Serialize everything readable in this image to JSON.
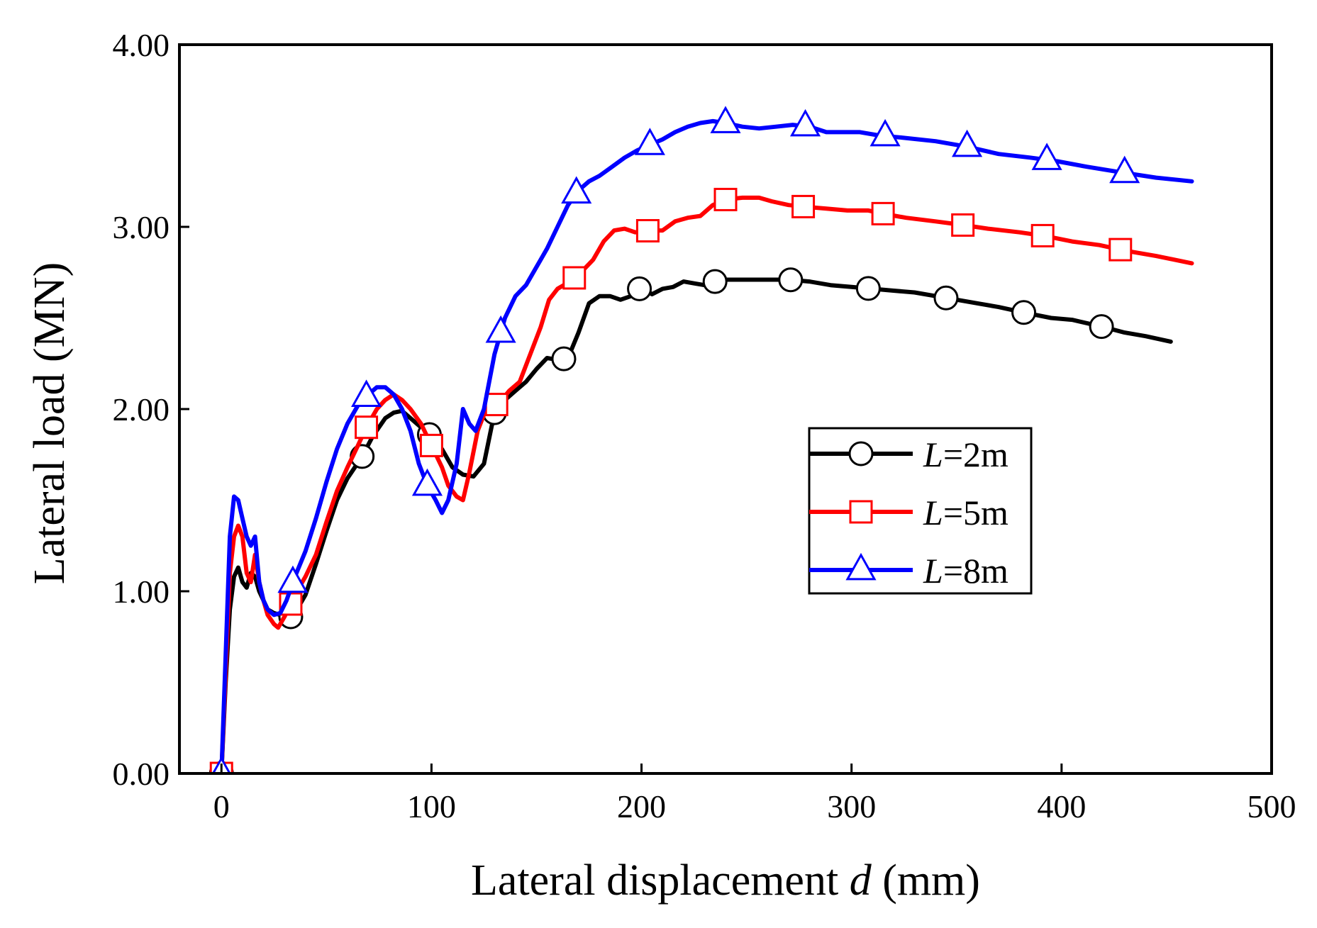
{
  "chart_data": {
    "type": "line",
    "xlabel": {
      "prefix": "Lateral displacement ",
      "italic": "d",
      "suffix": " (mm)"
    },
    "ylabel": "Lateral load (MN)",
    "xlim": [
      -20,
      500
    ],
    "ylim": [
      0,
      4
    ],
    "xticks": [
      0,
      100,
      200,
      300,
      400,
      500
    ],
    "xtick_labels": [
      "0",
      "100",
      "200",
      "300",
      "400",
      "500"
    ],
    "yticks": [
      0,
      1,
      2,
      3,
      4
    ],
    "ytick_labels": [
      "0.00",
      "1.00",
      "2.00",
      "3.00",
      "4.00"
    ],
    "legend_position": "center-right",
    "series": [
      {
        "name": "L=2m",
        "legend_italic": "L",
        "legend_rest": "=2m",
        "color": "#000000",
        "marker": "circle",
        "x": [
          0,
          2,
          4,
          6,
          8,
          10,
          12,
          14,
          16,
          18,
          20,
          22,
          25,
          28,
          32,
          35,
          40,
          45,
          50,
          55,
          60,
          67,
          72,
          78,
          82,
          86,
          90,
          95,
          100,
          105,
          110,
          115,
          120,
          125,
          130,
          135,
          140,
          145,
          150,
          155,
          160,
          165,
          170,
          175,
          180,
          185,
          190,
          195,
          200,
          205,
          210,
          215,
          220,
          225,
          230,
          235,
          240,
          250,
          260,
          270,
          280,
          290,
          300,
          310,
          320,
          330,
          345,
          360,
          370,
          382,
          395,
          405,
          420,
          430,
          440,
          452
        ],
        "y": [
          0,
          0.5,
          0.9,
          1.08,
          1.13,
          1.05,
          1.02,
          1.1,
          1.08,
          1.0,
          0.95,
          0.9,
          0.88,
          0.87,
          0.85,
          0.88,
          0.98,
          1.15,
          1.33,
          1.5,
          1.62,
          1.74,
          1.85,
          1.95,
          1.98,
          1.99,
          1.95,
          1.9,
          1.85,
          1.78,
          1.68,
          1.64,
          1.63,
          1.7,
          1.98,
          2.05,
          2.1,
          2.15,
          2.22,
          2.28,
          2.27,
          2.28,
          2.42,
          2.58,
          2.62,
          2.62,
          2.6,
          2.62,
          2.67,
          2.63,
          2.66,
          2.67,
          2.7,
          2.69,
          2.68,
          2.7,
          2.71,
          2.71,
          2.71,
          2.71,
          2.7,
          2.68,
          2.67,
          2.66,
          2.65,
          2.64,
          2.61,
          2.58,
          2.56,
          2.53,
          2.5,
          2.49,
          2.45,
          2.42,
          2.4,
          2.37
        ],
        "marker_x": [
          0,
          33,
          67,
          99,
          130,
          163,
          199,
          235,
          271,
          308,
          345,
          382,
          419
        ]
      },
      {
        "name": "L=5m",
        "legend_italic": "L",
        "legend_rest": "=5m",
        "color": "#ff0000",
        "marker": "square",
        "x": [
          0,
          2,
          4,
          6,
          8,
          10,
          12,
          14,
          16,
          18,
          20,
          22,
          25,
          27,
          30,
          33,
          36,
          40,
          45,
          50,
          55,
          60,
          65,
          69,
          74,
          78,
          82,
          86,
          90,
          95,
          100,
          105,
          108,
          112,
          115,
          118,
          122,
          126,
          132,
          137,
          142,
          147,
          152,
          156,
          160,
          166,
          172,
          177,
          182,
          187,
          192,
          197,
          204,
          210,
          216,
          222,
          228,
          234,
          240,
          248,
          256,
          262,
          270,
          278,
          288,
          298,
          308,
          316,
          326,
          340,
          353,
          365,
          380,
          392,
          405,
          418,
          430,
          445,
          462
        ],
        "y": [
          0,
          0.55,
          1.1,
          1.3,
          1.36,
          1.3,
          1.1,
          1.05,
          1.2,
          1.05,
          0.95,
          0.87,
          0.82,
          0.8,
          0.86,
          0.93,
          1.0,
          1.08,
          1.2,
          1.38,
          1.55,
          1.68,
          1.8,
          1.9,
          2.0,
          2.05,
          2.08,
          2.05,
          2.0,
          1.92,
          1.8,
          1.68,
          1.58,
          1.52,
          1.5,
          1.65,
          1.88,
          2.0,
          2.03,
          2.1,
          2.15,
          2.3,
          2.45,
          2.6,
          2.66,
          2.7,
          2.76,
          2.82,
          2.92,
          2.98,
          2.99,
          2.97,
          2.98,
          2.98,
          3.03,
          3.05,
          3.06,
          3.12,
          3.15,
          3.16,
          3.16,
          3.14,
          3.12,
          3.11,
          3.1,
          3.09,
          3.09,
          3.07,
          3.05,
          3.03,
          3.01,
          2.99,
          2.97,
          2.95,
          2.92,
          2.9,
          2.87,
          2.84,
          2.8
        ],
        "marker_x": [
          0,
          33,
          69,
          100,
          131,
          168,
          203,
          240,
          277,
          315,
          353,
          391,
          428
        ]
      },
      {
        "name": "L=8m",
        "legend_italic": "L",
        "legend_rest": "=8m",
        "color": "#0000ff",
        "marker": "triangle",
        "x": [
          0,
          2,
          4,
          6,
          8,
          10,
          12,
          14,
          16,
          18,
          20,
          22,
          25,
          28,
          31,
          35,
          40,
          45,
          50,
          55,
          60,
          65,
          70,
          74,
          78,
          82,
          86,
          90,
          94,
          98,
          102,
          105,
          108,
          112,
          115,
          118,
          121,
          125,
          130,
          135,
          140,
          145,
          150,
          155,
          160,
          165,
          170,
          175,
          180,
          186,
          192,
          198,
          204,
          210,
          216,
          222,
          228,
          234,
          240,
          248,
          256,
          264,
          272,
          280,
          288,
          296,
          304,
          314,
          324,
          340,
          355,
          370,
          385,
          398,
          412,
          428,
          445,
          462
        ],
        "y": [
          0,
          0.65,
          1.3,
          1.52,
          1.5,
          1.4,
          1.3,
          1.25,
          1.3,
          1.05,
          0.95,
          0.9,
          0.87,
          0.88,
          0.95,
          1.08,
          1.22,
          1.4,
          1.6,
          1.78,
          1.92,
          2.02,
          2.08,
          2.12,
          2.12,
          2.08,
          2.0,
          1.88,
          1.7,
          1.58,
          1.5,
          1.43,
          1.5,
          1.7,
          2.0,
          1.92,
          1.88,
          2.0,
          2.3,
          2.5,
          2.62,
          2.68,
          2.78,
          2.88,
          3.0,
          3.12,
          3.2,
          3.25,
          3.28,
          3.33,
          3.38,
          3.42,
          3.45,
          3.48,
          3.52,
          3.55,
          3.57,
          3.58,
          3.57,
          3.55,
          3.54,
          3.55,
          3.56,
          3.55,
          3.52,
          3.52,
          3.52,
          3.5,
          3.49,
          3.47,
          3.44,
          3.4,
          3.38,
          3.36,
          3.33,
          3.3,
          3.27,
          3.25
        ],
        "marker_x": [
          0,
          34,
          69,
          98,
          133,
          169,
          204,
          240,
          278,
          316,
          355,
          393,
          430
        ]
      }
    ]
  }
}
